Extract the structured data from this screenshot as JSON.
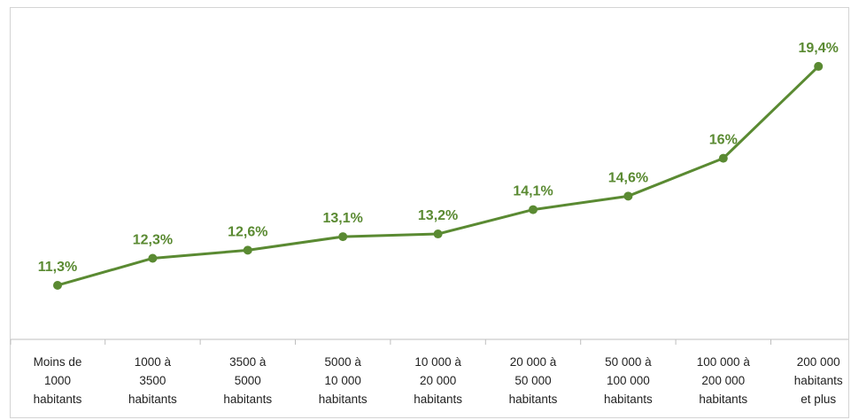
{
  "chart_data": {
    "type": "line",
    "categories": [
      [
        "Moins de",
        "1000",
        "habitants"
      ],
      [
        "1000 à",
        "3500",
        "habitants"
      ],
      [
        "3500 à",
        "5000",
        "habitants"
      ],
      [
        "5000 à",
        "10 000",
        "habitants"
      ],
      [
        "10 000 à",
        "20 000",
        "habitants"
      ],
      [
        "20 000 à",
        "50 000",
        "habitants"
      ],
      [
        "50 000 à",
        "100 000",
        "habitants"
      ],
      [
        "100 000 à",
        "200 000",
        "habitants"
      ],
      [
        "200 000",
        "habitants",
        "et plus"
      ]
    ],
    "series": [
      {
        "values": [
          11.3,
          12.3,
          12.6,
          13.1,
          13.2,
          14.1,
          14.6,
          16,
          19.4
        ],
        "data_labels": [
          "11,3%",
          "12,3%",
          "12,6%",
          "13,1%",
          "13,2%",
          "14,1%",
          "14,6%",
          "16%",
          "19,4%"
        ]
      }
    ],
    "title": "",
    "xlabel": "",
    "ylabel": "",
    "ylim": [
      9.3,
      21.2
    ],
    "grid": false,
    "legend": "none",
    "colors": {
      "line": "#5a8a32",
      "label": "#5a8a32",
      "axis": "#bfbfbf",
      "frame": "#d4d4d4"
    }
  }
}
